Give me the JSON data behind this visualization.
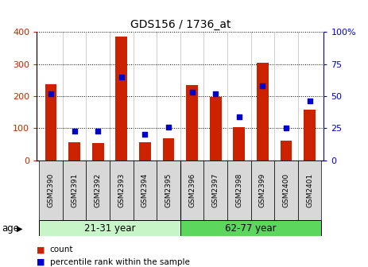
{
  "title": "GDS156 / 1736_at",
  "samples": [
    "GSM2390",
    "GSM2391",
    "GSM2392",
    "GSM2393",
    "GSM2394",
    "GSM2395",
    "GSM2396",
    "GSM2397",
    "GSM2398",
    "GSM2399",
    "GSM2400",
    "GSM2401"
  ],
  "counts": [
    237,
    55,
    53,
    385,
    55,
    68,
    235,
    197,
    103,
    305,
    62,
    157
  ],
  "percentiles": [
    52,
    23,
    23,
    65,
    20,
    26,
    53,
    52,
    34,
    58,
    25,
    46
  ],
  "ylim_left": [
    0,
    400
  ],
  "ylim_right": [
    0,
    100
  ],
  "yticks_left": [
    0,
    100,
    200,
    300,
    400
  ],
  "yticks_right": [
    0,
    25,
    50,
    75,
    100
  ],
  "groups": [
    {
      "label": "21-31 year",
      "start": 0,
      "end": 6
    },
    {
      "label": "62-77 year",
      "start": 6,
      "end": 12
    }
  ],
  "group_colors": [
    "#c8f5c8",
    "#5cd65c"
  ],
  "bar_color": "#CC2200",
  "dot_color": "#0000CC",
  "bar_width": 0.5,
  "left_label_color": "#CC2200",
  "right_label_color": "#0000CC",
  "xlabel_age": "age",
  "legend_count_color": "#CC2200",
  "legend_pct_color": "#0000CC"
}
